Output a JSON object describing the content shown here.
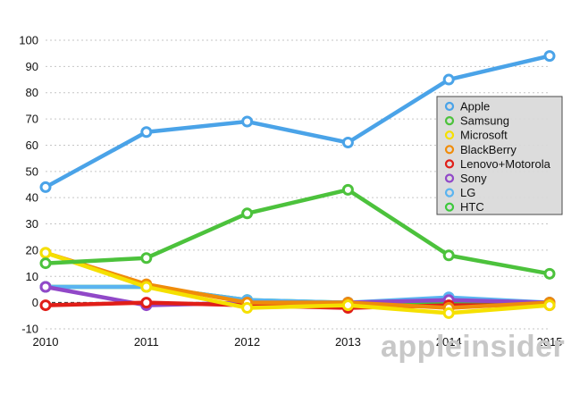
{
  "chart_data": {
    "type": "line",
    "title": "",
    "xlabel": "",
    "ylabel": "",
    "x": [
      2010,
      2011,
      2012,
      2013,
      2014,
      2015
    ],
    "x_tick_labels": [
      "2010",
      "2011",
      "2012",
      "2013",
      "2014",
      "2015"
    ],
    "ylim": [
      -10,
      100
    ],
    "y_ticks": [
      -10,
      0,
      10,
      20,
      30,
      40,
      50,
      60,
      70,
      80,
      90,
      100
    ],
    "y_tick_labels": [
      "-10",
      "0",
      "10",
      "20",
      "30",
      "40",
      "50",
      "60",
      "70",
      "80",
      "90",
      "100"
    ],
    "grid": "horizontal dashed",
    "legend_position": "right",
    "series": [
      {
        "name": "Apple",
        "color": "#4aa3e8",
        "values": [
          44,
          65,
          69,
          61,
          85,
          94
        ]
      },
      {
        "name": "Samsung",
        "color": "#4cc23c",
        "values": [
          15,
          17,
          34,
          43,
          18,
          11
        ]
      },
      {
        "name": "Microsoft",
        "color": "#f5e000",
        "values": [
          19,
          6,
          -2,
          -1,
          -4,
          -1
        ]
      },
      {
        "name": "BlackBerry",
        "color": "#f08c0a",
        "values": [
          19,
          7,
          0,
          0,
          -2,
          0
        ]
      },
      {
        "name": "Lenovo+Motorola",
        "color": "#e01e18",
        "values": [
          -1,
          0,
          -1,
          -2,
          -1,
          -1
        ]
      },
      {
        "name": "Sony",
        "color": "#9148c8",
        "values": [
          6,
          -1,
          0,
          0,
          1,
          0
        ]
      },
      {
        "name": "LG",
        "color": "#5ab4f0",
        "values": [
          6,
          6,
          1,
          0,
          2,
          0
        ]
      },
      {
        "name": "HTC",
        "color": "#3cc83c",
        "values": [
          6,
          6,
          1,
          0,
          0,
          0
        ]
      }
    ]
  },
  "watermark": "appleinsider"
}
